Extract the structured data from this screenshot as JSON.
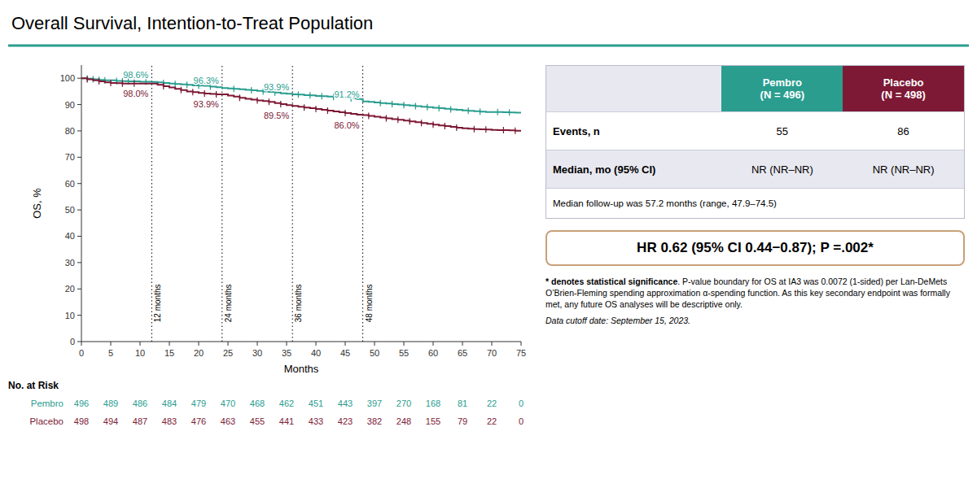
{
  "chart_data": {
    "type": "step",
    "title": "Overall Survival, Intention-to-Treat Population",
    "title_line_color": "#2a9d8f",
    "xlabel": "Months",
    "ylabel": "OS, %",
    "xlim": [
      0,
      75
    ],
    "ylim": [
      0,
      105
    ],
    "xticks": [
      0,
      5,
      10,
      15,
      20,
      25,
      30,
      35,
      40,
      45,
      50,
      55,
      60,
      65,
      70,
      75
    ],
    "yticks": [
      0,
      10,
      20,
      30,
      40,
      50,
      60,
      70,
      80,
      90,
      100
    ],
    "grid": false,
    "vlines": [
      {
        "value": 12,
        "label": "12 months"
      },
      {
        "value": 24,
        "label": "24 months"
      },
      {
        "value": 36,
        "label": "36 months"
      },
      {
        "value": 48,
        "label": "48 months"
      }
    ],
    "series": [
      {
        "name": "Pembro",
        "color": "#2a9d8f",
        "x": [
          0,
          1,
          2,
          3,
          4,
          5,
          6,
          7,
          8,
          9,
          10,
          11,
          12,
          13,
          14,
          15,
          16,
          17,
          18,
          19,
          20,
          21,
          22,
          23,
          24,
          25,
          26,
          27,
          28,
          29,
          30,
          31,
          32,
          33,
          34,
          35,
          36,
          37,
          38,
          39,
          40,
          41,
          42,
          43,
          44,
          45,
          46,
          47,
          48,
          49,
          50,
          51,
          52,
          53,
          54,
          55,
          56,
          57,
          58,
          59,
          60,
          61,
          62,
          63,
          64,
          65,
          66,
          67,
          68,
          69,
          70,
          71,
          72,
          73,
          74,
          75
        ],
        "values": [
          100,
          99.8,
          99.6,
          99.4,
          99.2,
          99.2,
          99.0,
          98.9,
          98.8,
          98.8,
          98.7,
          98.7,
          98.6,
          98.4,
          98.2,
          98.0,
          97.8,
          97.7,
          97.5,
          97.3,
          97.2,
          97.1,
          96.8,
          96.6,
          96.3,
          96.1,
          96.0,
          95.8,
          95.6,
          95.4,
          95.2,
          95.0,
          94.8,
          94.6,
          94.3,
          94.1,
          93.9,
          93.8,
          93.6,
          93.5,
          93.3,
          93.2,
          93.0,
          92.9,
          92.7,
          92.5,
          92.3,
          92.1,
          91.2,
          91.0,
          90.8,
          90.6,
          90.4,
          90.2,
          90.0,
          89.8,
          89.6,
          89.4,
          89.2,
          89.0,
          88.8,
          88.6,
          88.4,
          88.2,
          88.0,
          87.8,
          87.6,
          87.5,
          87.3,
          87.2,
          87.2,
          87.2,
          87.1,
          87.0,
          86.9,
          86.8
        ],
        "censor_x": [
          1,
          2,
          3,
          4,
          6,
          7,
          8,
          9,
          11,
          14,
          16,
          18,
          20,
          22,
          26,
          29,
          31,
          33,
          37,
          39,
          41,
          43,
          46,
          51,
          53,
          55,
          57,
          59,
          61,
          63,
          66,
          68,
          71,
          73
        ],
        "annotations": [
          {
            "x": 12,
            "y": 98.6,
            "label": "98.6%"
          },
          {
            "x": 24,
            "y": 96.3,
            "label": "96.3%"
          },
          {
            "x": 36,
            "y": 93.9,
            "label": "93.9%"
          },
          {
            "x": 48,
            "y": 91.2,
            "label": "91.2%"
          }
        ],
        "at_risk": [
          496,
          489,
          486,
          484,
          479,
          470,
          468,
          462,
          451,
          443,
          397,
          270,
          168,
          81,
          22,
          0
        ]
      },
      {
        "name": "Placebo",
        "color": "#7d1935",
        "x": [
          0,
          1,
          2,
          3,
          4,
          5,
          6,
          7,
          8,
          9,
          10,
          11,
          12,
          13,
          14,
          15,
          16,
          17,
          18,
          19,
          20,
          21,
          22,
          23,
          24,
          25,
          26,
          27,
          28,
          29,
          30,
          31,
          32,
          33,
          34,
          35,
          36,
          37,
          38,
          39,
          40,
          41,
          42,
          43,
          44,
          45,
          46,
          47,
          48,
          49,
          50,
          51,
          52,
          53,
          54,
          55,
          56,
          57,
          58,
          59,
          60,
          61,
          62,
          63,
          64,
          65,
          66,
          67,
          68,
          69,
          70,
          71,
          72,
          73,
          74,
          75
        ],
        "values": [
          100,
          99.6,
          99.2,
          98.8,
          98.4,
          98.2,
          98.1,
          98.0,
          98.0,
          98.0,
          98.0,
          98.0,
          98.0,
          97.5,
          97.0,
          96.5,
          96.0,
          95.5,
          95.0,
          94.7,
          94.4,
          94.2,
          94.0,
          93.9,
          93.9,
          93.4,
          93.0,
          92.6,
          92.2,
          91.9,
          91.6,
          91.3,
          91.0,
          90.6,
          90.2,
          89.8,
          89.5,
          89.2,
          88.9,
          88.6,
          88.3,
          88.0,
          87.7,
          87.4,
          87.1,
          86.8,
          86.5,
          86.2,
          86.0,
          85.7,
          85.4,
          85.1,
          84.8,
          84.5,
          84.2,
          83.9,
          83.6,
          83.3,
          83.0,
          82.7,
          82.4,
          82.1,
          81.8,
          81.5,
          81.2,
          81.0,
          80.8,
          80.7,
          80.6,
          80.5,
          80.4,
          80.3,
          80.3,
          80.2,
          80.1,
          80.0
        ],
        "censor_x": [
          1,
          3,
          5,
          7,
          9,
          14,
          17,
          19,
          21,
          23,
          27,
          30,
          32,
          34,
          38,
          40,
          42,
          45,
          49,
          52,
          54,
          56,
          58,
          60,
          62,
          64,
          67,
          69,
          72,
          74
        ],
        "annotations": [
          {
            "x": 12,
            "y": 98.0,
            "label": "98.0%"
          },
          {
            "x": 24,
            "y": 93.9,
            "label": "93.9%"
          },
          {
            "x": 36,
            "y": 89.5,
            "label": "89.5%"
          },
          {
            "x": 48,
            "y": 86.0,
            "label": "86.0%"
          }
        ],
        "at_risk": [
          498,
          494,
          487,
          483,
          476,
          463,
          455,
          441,
          433,
          423,
          382,
          248,
          155,
          79,
          22,
          0
        ]
      }
    ],
    "at_risk_title": "No. at Risk",
    "at_risk_x": [
      0,
      5,
      10,
      15,
      20,
      25,
      30,
      35,
      40,
      45,
      50,
      55,
      60,
      65,
      70,
      75
    ],
    "table_bg": "#e8e8f0",
    "summary_table": {
      "columns": [
        [
          "Pembro",
          "(N = 496)"
        ],
        [
          "Placebo",
          "(N = 498)"
        ]
      ],
      "rows": [
        {
          "label": "Events, n",
          "values": [
            55,
            86
          ]
        },
        {
          "label": "Median, mo (95% CI)",
          "values": [
            "NR (NR–NR)",
            "NR (NR–NR)"
          ]
        }
      ],
      "note": "Median follow-up was 57.2 months (range, 47.9–74.5)"
    },
    "hr_box_color": "#c8a078",
    "hr_text": "HR 0.62 (95% CI 0.44−0.87); P =.002*",
    "footnote_bold": "* denotes statistical significance",
    "footnote_rest": ". P-value boundary for OS at IA3 was 0.0072 (1-sided) per Lan-DeMets O’Brien-Fleming spending approximation α-spending function. As this key secondary endpoint was formally met, any future OS analyses will be descriptive only.",
    "cutoff_text": "Data cutoff date: September 15, 2023."
  }
}
